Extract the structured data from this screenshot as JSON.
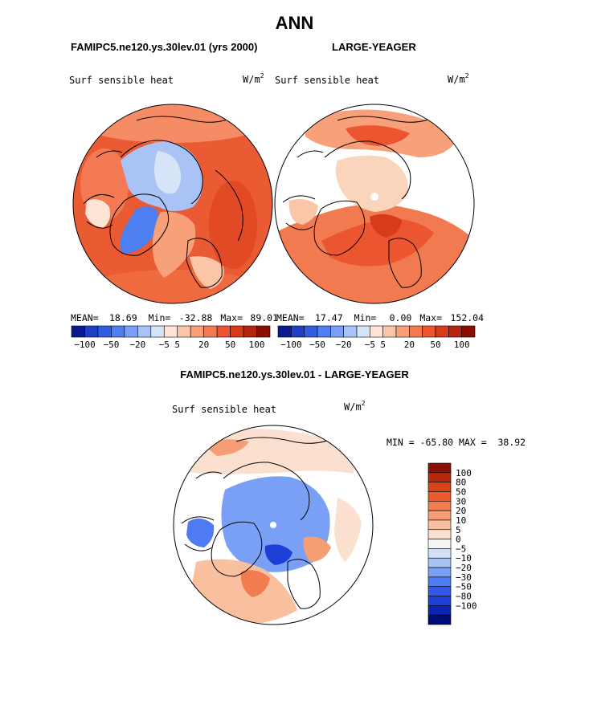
{
  "main_title": "ANN",
  "panels": [
    {
      "title": "FAMIPC5.ne120.ys.30lev.01 (yrs 2000)",
      "variable": "Surf sensible heat",
      "units_base": "W/m",
      "units_exp": "2",
      "stats": {
        "mean_label": "MEAN=",
        "mean": "18.69",
        "min_label": "Min=",
        "min": "-32.88",
        "max_label": "Max=",
        "max": "89.01"
      }
    },
    {
      "title": "LARGE-YEAGER",
      "variable": "Surf sensible heat",
      "units_base": "W/m",
      "units_exp": "2",
      "stats": {
        "mean_label": "MEAN=",
        "mean": "17.47",
        "min_label": "Min=",
        "min": "0.00",
        "max_label": "Max=",
        "max": "152.04"
      }
    },
    {
      "title": "FAMIPC5.ne120.ys.30lev.01 - LARGE-YEAGER",
      "variable": "Surf sensible heat",
      "units_base": "W/m",
      "units_exp": "2",
      "stats_text": "MIN = -65.80 MAX =  38.92"
    }
  ],
  "colors": {
    "abs_scale": [
      "#0a1a8c",
      "#1f3fc4",
      "#2f5fe0",
      "#4d7ef2",
      "#7aa0f5",
      "#a9c3f6",
      "#d6e4f7",
      "#fde4d4",
      "#fbc6a8",
      "#f7a07a",
      "#f27a50",
      "#eb5530",
      "#d63c1a",
      "#b52410",
      "#8a0e04"
    ],
    "diff_scale": [
      "#000b7a",
      "#0b22b5",
      "#1d3fd6",
      "#3158ea",
      "#4e7af3",
      "#7aa0f5",
      "#a8c2f4",
      "#d2e0f5",
      "#f4f4f4",
      "#fbe0d0",
      "#f9c0a0",
      "#f59d74",
      "#f07c50",
      "#ea5b30",
      "#d94318",
      "#b52a0c",
      "#8a1004"
    ],
    "land_outline": "#000000"
  },
  "chart_data": [
    {
      "type": "heatmap",
      "title": "FAMIPC5.ne120.ys.30lev.01 (yrs 2000)",
      "projection": "north polar stereographic",
      "variable": "Surf sensible heat",
      "units": "W/m2",
      "mean": 18.69,
      "min": -32.88,
      "max": 89.01,
      "colorbar_ticks": [
        -100,
        -50,
        -20,
        -5,
        5,
        20,
        50,
        100
      ]
    },
    {
      "type": "heatmap",
      "title": "LARGE-YEAGER",
      "projection": "north polar stereographic",
      "variable": "Surf sensible heat",
      "units": "W/m2",
      "mean": 17.47,
      "min": 0.0,
      "max": 152.04,
      "colorbar_ticks": [
        -100,
        -50,
        -20,
        -5,
        5,
        20,
        50,
        100
      ]
    },
    {
      "type": "heatmap",
      "title": "FAMIPC5.ne120.ys.30lev.01 - LARGE-YEAGER",
      "projection": "north polar stereographic",
      "variable": "Surf sensible heat",
      "units": "W/m2",
      "min": -65.8,
      "max": 38.92,
      "colorbar_levels": [
        100,
        80,
        50,
        30,
        20,
        10,
        5,
        0,
        -5,
        -10,
        -20,
        -30,
        -50,
        -80,
        -100
      ]
    }
  ]
}
